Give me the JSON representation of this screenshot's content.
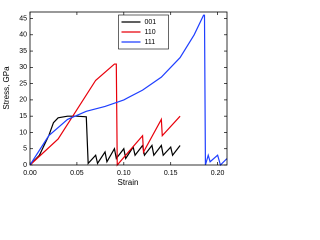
{
  "chart_data": {
    "type": "line",
    "xlabel": "Strain",
    "ylabel": "Stress, GPa",
    "xlim": [
      0,
      0.21
    ],
    "ylim": [
      0,
      47
    ],
    "xticks": [
      {
        "value": 0,
        "label": "0.00"
      },
      0.05,
      {
        "value": 0.1,
        "label": "0.10"
      },
      0.15,
      {
        "value": 0.2,
        "label": "0.20"
      }
    ],
    "yticks": [
      0,
      5,
      10,
      15,
      20,
      25,
      30,
      35,
      40,
      45
    ],
    "legend": "upper center",
    "series": [
      {
        "name": "001",
        "color": "#000000",
        "x": [
          0,
          0.01,
          0.02,
          0.025,
          0.03,
          0.04,
          0.05,
          0.06,
          0.062,
          0.07,
          0.072,
          0.08,
          0.082,
          0.09,
          0.092,
          0.1,
          0.102,
          0.11,
          0.112,
          0.12,
          0.122,
          0.13,
          0.132,
          0.14,
          0.142,
          0.15,
          0.152,
          0.16
        ],
        "values": [
          0,
          3,
          9,
          13,
          14.5,
          15,
          15,
          14.8,
          0.5,
          3,
          0.5,
          4,
          1,
          5,
          2,
          5,
          2,
          5.5,
          3,
          6,
          3,
          6,
          3,
          6,
          3,
          5.5,
          3,
          6
        ]
      },
      {
        "name": "110",
        "color": "#e8000b",
        "x": [
          0,
          0.03,
          0.05,
          0.07,
          0.09,
          0.092,
          0.093,
          0.12,
          0.121,
          0.14,
          0.141,
          0.16
        ],
        "values": [
          0,
          8,
          17,
          26,
          31,
          31,
          0,
          9,
          4,
          14,
          9,
          15
        ]
      },
      {
        "name": "111",
        "color": "#1f3fff",
        "x": [
          0,
          0.02,
          0.04,
          0.06,
          0.08,
          0.1,
          0.12,
          0.14,
          0.16,
          0.175,
          0.185,
          0.186,
          0.187,
          0.19,
          0.192,
          0.2,
          0.203,
          0.21
        ],
        "values": [
          0,
          9,
          14,
          16.5,
          18,
          20,
          23,
          27,
          33,
          40,
          46,
          46,
          0,
          3,
          1,
          3,
          0,
          2
        ]
      }
    ]
  }
}
